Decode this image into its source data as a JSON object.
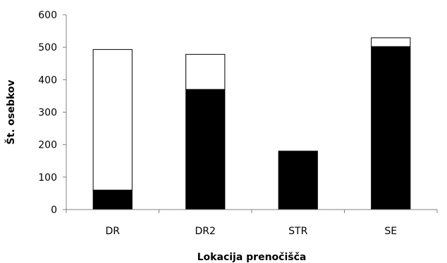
{
  "chart_data": {
    "type": "bar",
    "stacked": true,
    "categories": [
      "DR",
      "DR2",
      "STR",
      "SE"
    ],
    "series": [
      {
        "values": [
          60,
          370,
          180,
          502
        ],
        "color": "#000000"
      },
      {
        "values": [
          433,
          108,
          0,
          27
        ],
        "color": "#ffffff"
      }
    ],
    "xlabel": "Lokacija prenočišča",
    "ylabel": "Št. osebkov",
    "ylim": [
      0,
      600
    ],
    "yticks": [
      0,
      100,
      200,
      300,
      400,
      500,
      600
    ],
    "grid": false,
    "legend": "none"
  }
}
